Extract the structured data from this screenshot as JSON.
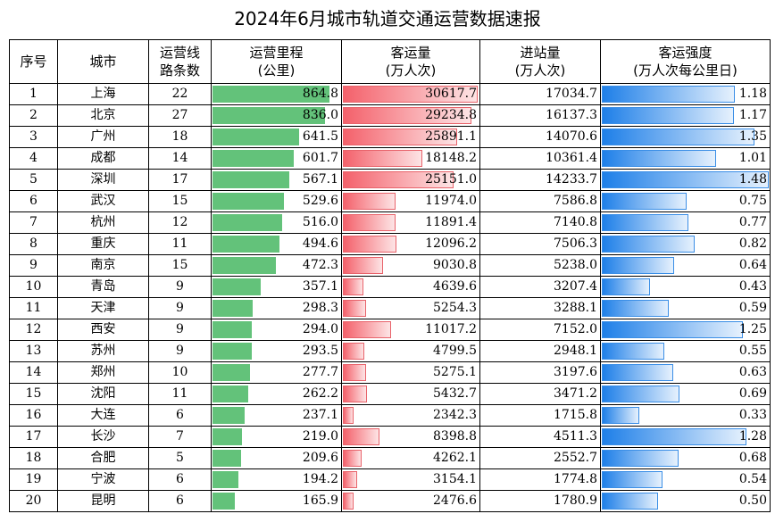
{
  "title": "2024年6月城市轨道交通运营数据速报",
  "colors": {
    "mileage_bar": "#63c27a",
    "volume_bar": "#f4616b",
    "intensity_bar": "#1e7fe8"
  },
  "headers": {
    "index": "序号",
    "city": "城市",
    "lines": [
      "运营线",
      "路条数"
    ],
    "mileage": [
      "运营里程",
      "(公里)"
    ],
    "volume": [
      "客运量",
      "(万人次)"
    ],
    "entries": [
      "进站量",
      "(万人次)"
    ],
    "intensity": [
      "客运强度",
      "(万人次每公里日)"
    ]
  },
  "chart_data": {
    "type": "table",
    "title": "2024年6月城市轨道交通运营数据速报",
    "columns": [
      "序号",
      "城市",
      "运营线路条数",
      "运营里程(公里)",
      "客运量(万人次)",
      "进站量(万人次)",
      "客运强度(万人次每公里日)"
    ],
    "bar_columns": {
      "mileage": 864.8,
      "volume": 30617.7,
      "intensity": 1.48
    },
    "rows": [
      {
        "idx": "1",
        "city": "上海",
        "lines": "22",
        "mileage": "864.8",
        "volume": "30617.7",
        "entries": "17034.7",
        "intensity": "1.18"
      },
      {
        "idx": "2",
        "city": "北京",
        "lines": "27",
        "mileage": "836.0",
        "volume": "29234.8",
        "entries": "16137.3",
        "intensity": "1.17"
      },
      {
        "idx": "3",
        "city": "广州",
        "lines": "18",
        "mileage": "641.5",
        "volume": "25891.1",
        "entries": "14070.6",
        "intensity": "1.35"
      },
      {
        "idx": "4",
        "city": "成都",
        "lines": "14",
        "mileage": "601.7",
        "volume": "18148.2",
        "entries": "10361.4",
        "intensity": "1.01"
      },
      {
        "idx": "5",
        "city": "深圳",
        "lines": "17",
        "mileage": "567.1",
        "volume": "25151.0",
        "entries": "14233.7",
        "intensity": "1.48"
      },
      {
        "idx": "6",
        "city": "武汉",
        "lines": "15",
        "mileage": "529.6",
        "volume": "11974.0",
        "entries": "7586.8",
        "intensity": "0.75"
      },
      {
        "idx": "7",
        "city": "杭州",
        "lines": "12",
        "mileage": "516.0",
        "volume": "11891.4",
        "entries": "7140.8",
        "intensity": "0.77"
      },
      {
        "idx": "8",
        "city": "重庆",
        "lines": "11",
        "mileage": "494.6",
        "volume": "12096.2",
        "entries": "7506.3",
        "intensity": "0.82"
      },
      {
        "idx": "9",
        "city": "南京",
        "lines": "15",
        "mileage": "472.3",
        "volume": "9030.8",
        "entries": "5238.0",
        "intensity": "0.64"
      },
      {
        "idx": "10",
        "city": "青岛",
        "lines": "9",
        "mileage": "357.1",
        "volume": "4639.6",
        "entries": "3207.4",
        "intensity": "0.43"
      },
      {
        "idx": "11",
        "city": "天津",
        "lines": "9",
        "mileage": "298.3",
        "volume": "5254.3",
        "entries": "3288.1",
        "intensity": "0.59"
      },
      {
        "idx": "12",
        "city": "西安",
        "lines": "9",
        "mileage": "294.0",
        "volume": "11017.2",
        "entries": "7152.0",
        "intensity": "1.25"
      },
      {
        "idx": "13",
        "city": "苏州",
        "lines": "9",
        "mileage": "293.5",
        "volume": "4799.5",
        "entries": "2948.1",
        "intensity": "0.55"
      },
      {
        "idx": "14",
        "city": "郑州",
        "lines": "10",
        "mileage": "277.7",
        "volume": "5275.1",
        "entries": "3197.6",
        "intensity": "0.63"
      },
      {
        "idx": "15",
        "city": "沈阳",
        "lines": "11",
        "mileage": "262.2",
        "volume": "5432.7",
        "entries": "3471.2",
        "intensity": "0.69"
      },
      {
        "idx": "16",
        "city": "大连",
        "lines": "6",
        "mileage": "237.1",
        "volume": "2342.3",
        "entries": "1715.8",
        "intensity": "0.33"
      },
      {
        "idx": "17",
        "city": "长沙",
        "lines": "7",
        "mileage": "219.0",
        "volume": "8398.8",
        "entries": "4511.3",
        "intensity": "1.28"
      },
      {
        "idx": "18",
        "city": "合肥",
        "lines": "5",
        "mileage": "209.6",
        "volume": "4262.1",
        "entries": "2552.7",
        "intensity": "0.68"
      },
      {
        "idx": "19",
        "city": "宁波",
        "lines": "6",
        "mileage": "194.2",
        "volume": "3154.1",
        "entries": "1774.8",
        "intensity": "0.54"
      },
      {
        "idx": "20",
        "city": "昆明",
        "lines": "6",
        "mileage": "165.9",
        "volume": "2476.6",
        "entries": "1780.9",
        "intensity": "0.50"
      }
    ]
  }
}
